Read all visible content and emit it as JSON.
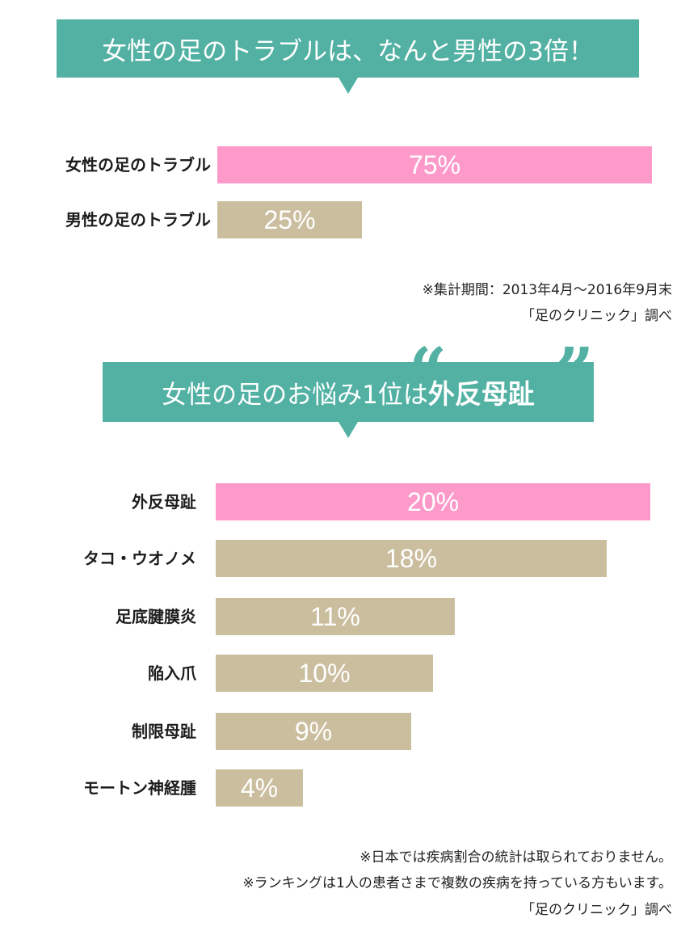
{
  "banner1": {
    "text": "女性の足のトラブルは、なんと男性の3倍！"
  },
  "banner2": {
    "text": "女性の足のお悩み1位は",
    "highlight": "外反母趾",
    "quote_open": "“",
    "quote_close": "”"
  },
  "colors": {
    "teal": "#52b1a3",
    "pink": "#fd9ac9",
    "beige": "#cbbe9f"
  },
  "note1": {
    "line1": "※集計期間：2013年4月〜2016年9月末",
    "line2": "「足のクリニック」調べ"
  },
  "note2": {
    "line1": "※日本では疾病割合の統計は取られておりません。",
    "line2": "※ランキングは1人の患者さまで複数の疾病を持っている方もいます。",
    "line3": "「足のクリニック」調べ"
  },
  "chart_data": [
    {
      "type": "bar",
      "orientation": "horizontal",
      "categories": [
        "女性の足のトラブル",
        "男性の足のトラブル"
      ],
      "values": [
        75,
        25
      ],
      "value_labels": [
        "75%",
        "25%"
      ],
      "colors": [
        "#fd9ac9",
        "#cbbe9f"
      ],
      "xlim": [
        0,
        75
      ]
    },
    {
      "type": "bar",
      "orientation": "horizontal",
      "categories": [
        "外反母趾",
        "タコ・ウオノメ",
        "足底腱膜炎",
        "陥入爪",
        "制限母趾",
        "モートン神経腫"
      ],
      "values": [
        20,
        18,
        11,
        10,
        9,
        4
      ],
      "value_labels": [
        "20%",
        "18%",
        "11%",
        "10%",
        "9%",
        "4%"
      ],
      "colors": [
        "#fd9ac9",
        "#cbbe9f",
        "#cbbe9f",
        "#cbbe9f",
        "#cbbe9f",
        "#cbbe9f"
      ],
      "xlim": [
        0,
        20
      ]
    }
  ]
}
